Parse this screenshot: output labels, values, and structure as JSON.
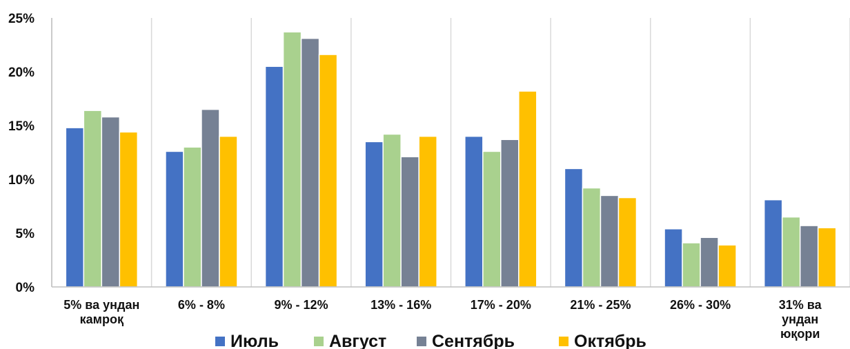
{
  "chart_data": {
    "type": "bar",
    "categories": [
      [
        "5% ва ундан",
        "камроқ"
      ],
      [
        "6%  - 8%"
      ],
      [
        "9%  - 12%"
      ],
      [
        "13%  - 16%"
      ],
      [
        "17%  - 20%"
      ],
      [
        "21%  - 25%"
      ],
      [
        "26%  - 30%"
      ],
      [
        "31% ва",
        "ундан",
        "юқори"
      ]
    ],
    "series": [
      {
        "name": "Июль",
        "color": "#4472C4",
        "values": [
          14.8,
          12.6,
          20.5,
          13.5,
          14.0,
          11.0,
          5.4,
          8.1
        ]
      },
      {
        "name": "Август",
        "color": "#A9D18E",
        "values": [
          16.4,
          13.0,
          23.7,
          14.2,
          12.6,
          9.2,
          4.1,
          6.5
        ]
      },
      {
        "name": "Сентябрь",
        "color": "#768194",
        "values": [
          15.8,
          16.5,
          23.1,
          12.1,
          13.7,
          8.5,
          4.6,
          5.7
        ]
      },
      {
        "name": "Октябрь",
        "color": "#FFC000",
        "values": [
          14.4,
          14.0,
          21.6,
          14.0,
          18.2,
          8.3,
          3.9,
          5.5
        ]
      }
    ],
    "ylim": [
      0,
      25
    ],
    "yticks": [
      "0%",
      "5%",
      "10%",
      "15%",
      "20%",
      "25%"
    ],
    "ytick_values": [
      0,
      5,
      10,
      15,
      20,
      25
    ],
    "grid": "vertical separators between categories",
    "legend_position": "bottom"
  }
}
